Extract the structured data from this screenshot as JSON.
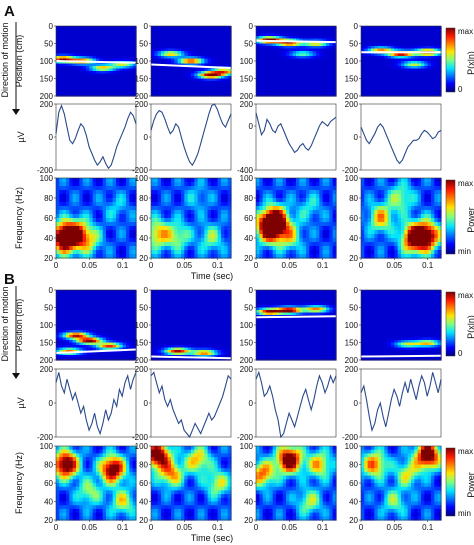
{
  "panel_labels": [
    "A",
    "B"
  ],
  "side_label": "Direction of motion",
  "row_labels": {
    "position": "Position (cm)",
    "lfp": "µV",
    "freq": "Frequency (Hz)"
  },
  "time_label": "Time (sec)",
  "colorbars": {
    "position_title": "P(x|n)",
    "power_title": "Power",
    "max": "max",
    "min": "min",
    "zero": "0"
  },
  "colors": {
    "background_map": "#0a1f8f",
    "trace": "#2a4a8c",
    "position_line": "#ffffff"
  },
  "chart_data": [
    {
      "type": "heatmap",
      "panel": "A",
      "row": "position",
      "ylabel": "Position (cm)",
      "y_ticks": [
        "0",
        "50",
        "100",
        "150",
        "200"
      ],
      "x_ticks": [
        "0",
        "0.05",
        "0.1"
      ],
      "xlim": [
        0,
        0.12
      ],
      "ylim": [
        0,
        200
      ],
      "columns": [
        {
          "true_position": [
            [
              0,
              100
            ],
            [
              0.12,
              105
            ]
          ],
          "blobs": [
            [
              0.01,
              95,
              0.9
            ],
            [
              0.04,
              100,
              0.7
            ],
            [
              0.07,
              120,
              0.6
            ],
            [
              0.1,
              110,
              0.5
            ]
          ]
        },
        {
          "true_position": [
            [
              0,
              110
            ],
            [
              0.12,
              120
            ]
          ],
          "blobs": [
            [
              0.03,
              80,
              0.6
            ],
            [
              0.06,
              100,
              0.8
            ],
            [
              0.09,
              140,
              1.0
            ],
            [
              0.11,
              130,
              0.7
            ]
          ]
        },
        {
          "true_position": [
            [
              0,
              42
            ],
            [
              0.12,
              46
            ]
          ],
          "blobs": [
            [
              0.02,
              40,
              1.0
            ],
            [
              0.05,
              48,
              0.9
            ],
            [
              0.09,
              50,
              0.6
            ],
            [
              0.07,
              80,
              0.4
            ]
          ]
        },
        {
          "true_position": [
            [
              0,
              75
            ],
            [
              0.12,
              75
            ]
          ],
          "blobs": [
            [
              0.03,
              70,
              0.7
            ],
            [
              0.06,
              80,
              0.9
            ],
            [
              0.1,
              75,
              1.0
            ],
            [
              0.08,
              110,
              0.5
            ]
          ]
        }
      ]
    },
    {
      "type": "line",
      "panel": "A",
      "row": "lfp",
      "ylabel": "µV",
      "columns": [
        {
          "y_ticks": [
            "200",
            "0",
            "-200"
          ],
          "ylim": [
            -200,
            200
          ],
          "values": [
            20,
            150,
            190,
            140,
            60,
            -20,
            -40,
            -10,
            40,
            80,
            60,
            10,
            -60,
            -100,
            -140,
            -170,
            -150,
            -120,
            -160,
            -190,
            -170,
            -120,
            -60,
            -20,
            20,
            60,
            110,
            150,
            130,
            80
          ]
        },
        {
          "y_ticks": [
            "200",
            "0",
            "-200"
          ],
          "ylim": [
            -200,
            200
          ],
          "values": [
            40,
            100,
            140,
            160,
            150,
            110,
            60,
            20,
            40,
            80,
            60,
            0,
            -60,
            -110,
            -150,
            -170,
            -140,
            -100,
            -40,
            20,
            80,
            140,
            190,
            200,
            170,
            120,
            80,
            60,
            100,
            140
          ]
        },
        {
          "y_ticks": [
            "200",
            "0",
            "-400"
          ],
          "ylim": [
            -400,
            200
          ],
          "values": [
            120,
            20,
            -80,
            -40,
            60,
            20,
            -40,
            -60,
            0,
            20,
            -40,
            -100,
            -160,
            -200,
            -240,
            -220,
            -180,
            -160,
            -200,
            -220,
            -180,
            -120,
            -60,
            0,
            40,
            20,
            0,
            40,
            60,
            80
          ]
        },
        {
          "y_ticks": [
            "200",
            "0",
            "-200"
          ],
          "ylim": [
            -200,
            200
          ],
          "values": [
            60,
            20,
            -20,
            -40,
            -10,
            20,
            60,
            80,
            60,
            20,
            -20,
            -60,
            -100,
            -140,
            -160,
            -140,
            -100,
            -60,
            -40,
            -20,
            -20,
            -10,
            20,
            40,
            30,
            10,
            -10,
            0,
            30,
            40
          ]
        }
      ]
    },
    {
      "type": "heatmap",
      "panel": "A",
      "row": "freq",
      "ylabel": "Frequency (Hz)",
      "y_ticks": [
        "100",
        "80",
        "60",
        "40",
        "20"
      ],
      "x_ticks": [
        "0",
        "0.05",
        "0.1"
      ],
      "xlim": [
        0,
        0.12
      ],
      "ylim": [
        20,
        100
      ],
      "columns": [
        {
          "blobs": [
            [
              0.012,
              40,
              1.0
            ],
            [
              0.03,
              44,
              0.7
            ],
            [
              0.05,
              38,
              0.35
            ],
            [
              0.09,
              70,
              0.15
            ]
          ]
        },
        {
          "blobs": [
            [
              0.01,
              44,
              0.5
            ],
            [
              0.04,
              42,
              0.35
            ],
            [
              0.09,
              40,
              0.3
            ],
            [
              0.07,
              80,
              0.15
            ]
          ]
        },
        {
          "blobs": [
            [
              0.02,
              50,
              1.0
            ],
            [
              0.03,
              58,
              0.8
            ],
            [
              0.05,
              42,
              0.4
            ],
            [
              0.08,
              70,
              0.2
            ]
          ]
        },
        {
          "blobs": [
            [
              0.08,
              40,
              0.95
            ],
            [
              0.1,
              42,
              0.8
            ],
            [
              0.03,
              60,
              0.5
            ],
            [
              0.06,
              80,
              0.35
            ]
          ]
        }
      ]
    },
    {
      "type": "heatmap",
      "panel": "B",
      "row": "position",
      "ylabel": "Position (cm)",
      "y_ticks": [
        "0",
        "50",
        "100",
        "150",
        "200"
      ],
      "x_ticks": [
        "0",
        "0.05",
        "0.1"
      ],
      "xlim": [
        0,
        0.12
      ],
      "ylim": [
        0,
        200
      ],
      "columns": [
        {
          "true_position": [
            [
              0,
              180
            ],
            [
              0.12,
              170
            ]
          ],
          "blobs": [
            [
              0.03,
              130,
              0.9
            ],
            [
              0.05,
              145,
              1.0
            ],
            [
              0.08,
              160,
              0.8
            ],
            [
              0.02,
              175,
              0.7
            ]
          ]
        },
        {
          "true_position": [
            [
              0,
              190
            ],
            [
              0.12,
              195
            ]
          ],
          "blobs": [
            [
              0.04,
              175,
              0.9
            ],
            [
              0.08,
              180,
              0.7
            ]
          ]
        },
        {
          "true_position": [
            [
              0,
              78
            ],
            [
              0.12,
              75
            ]
          ],
          "blobs": [
            [
              0.02,
              62,
              0.9
            ],
            [
              0.05,
              58,
              1.0
            ],
            [
              0.09,
              55,
              0.7
            ]
          ]
        },
        {
          "true_position": [
            [
              0,
              190
            ],
            [
              0.12,
              188
            ]
          ],
          "blobs": [
            [
              0.07,
              155,
              0.5
            ],
            [
              0.1,
              152,
              0.6
            ]
          ]
        }
      ]
    },
    {
      "type": "line",
      "panel": "B",
      "row": "lfp",
      "ylabel": "µV",
      "columns": [
        {
          "y_ticks": [
            "200",
            "0",
            "-200"
          ],
          "ylim": [
            -200,
            200
          ],
          "values": [
            120,
            180,
            100,
            60,
            140,
            80,
            20,
            60,
            0,
            -60,
            -20,
            -100,
            -160,
            -120,
            -60,
            -140,
            -180,
            -120,
            -40,
            -100,
            -60,
            20,
            -20,
            80,
            40,
            120,
            160,
            80,
            140,
            180
          ]
        },
        {
          "y_ticks": [
            "200",
            "0",
            "-200"
          ],
          "ylim": [
            -200,
            200
          ],
          "values": [
            160,
            180,
            120,
            60,
            100,
            20,
            -20,
            20,
            -40,
            -80,
            -120,
            -100,
            -160,
            -180,
            -200,
            -160,
            -120,
            -150,
            -180,
            -140,
            -100,
            -60,
            -100,
            -80,
            -40,
            0,
            40,
            100,
            160,
            140
          ]
        },
        {
          "y_ticks": [
            "200",
            "0",
            "-200"
          ],
          "ylim": [
            -200,
            200
          ],
          "values": [
            140,
            180,
            120,
            40,
            60,
            100,
            40,
            -40,
            -100,
            -200,
            -180,
            -120,
            -60,
            -100,
            -140,
            -80,
            -20,
            40,
            80,
            20,
            -40,
            20,
            100,
            160,
            120,
            60,
            100,
            160,
            120,
            160
          ]
        },
        {
          "y_ticks": [
            "200",
            "0",
            "-200"
          ],
          "ylim": [
            -200,
            200
          ],
          "values": [
            60,
            100,
            20,
            -80,
            -160,
            -120,
            -40,
            0,
            -80,
            -140,
            -60,
            20,
            80,
            40,
            -20,
            60,
            120,
            60,
            140,
            80,
            20,
            100,
            160,
            120,
            40,
            100,
            180,
            120,
            60,
            140
          ]
        }
      ]
    },
    {
      "type": "heatmap",
      "panel": "B",
      "row": "freq",
      "ylabel": "Frequency (Hz)",
      "y_ticks": [
        "100",
        "80",
        "60",
        "40",
        "20"
      ],
      "x_ticks": [
        "0",
        "0.05",
        "0.1"
      ],
      "xlim": [
        0,
        0.12
      ],
      "ylim": [
        20,
        100
      ],
      "columns": [
        {
          "blobs": [
            [
              0.015,
              80,
              1.0
            ],
            [
              0.085,
              75,
              0.95
            ],
            [
              0.05,
              50,
              0.35
            ],
            [
              0.1,
              40,
              0.4
            ]
          ]
        },
        {
          "blobs": [
            [
              0.01,
              90,
              0.95
            ],
            [
              0.03,
              70,
              0.55
            ],
            [
              0.07,
              85,
              0.5
            ],
            [
              0.1,
              60,
              0.4
            ]
          ]
        },
        {
          "blobs": [
            [
              0.05,
              85,
              1.0
            ],
            [
              0.01,
              70,
              0.6
            ],
            [
              0.095,
              80,
              0.5
            ],
            [
              0.08,
              40,
              0.35
            ]
          ]
        },
        {
          "blobs": [
            [
              0.1,
              90,
              1.0
            ],
            [
              0.02,
              80,
              0.6
            ],
            [
              0.07,
              70,
              0.4
            ],
            [
              0.05,
              40,
              0.3
            ]
          ]
        }
      ]
    }
  ]
}
